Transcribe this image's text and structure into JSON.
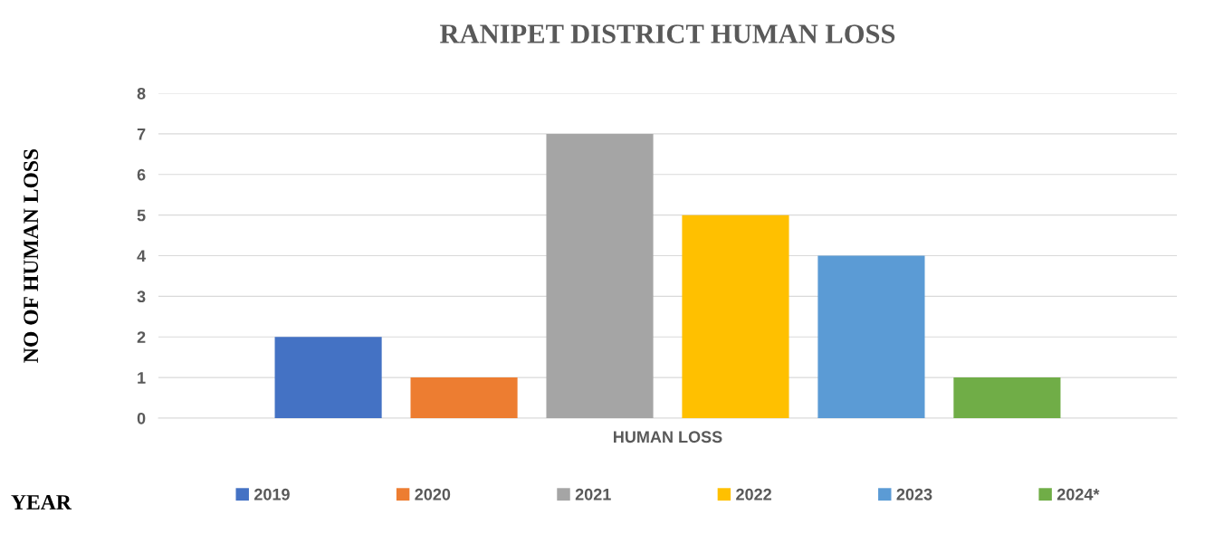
{
  "chart_data": {
    "type": "bar",
    "title": "RANIPET DISTRICT HUMAN LOSS",
    "ylabel": "NO OF HUMAN LOSS",
    "legend_title": "YEAR",
    "categories": [
      "HUMAN LOSS"
    ],
    "series": [
      {
        "name": "2019",
        "color": "#4472c4",
        "values": [
          2
        ]
      },
      {
        "name": "2020",
        "color": "#ed7d31",
        "values": [
          1
        ]
      },
      {
        "name": "2021",
        "color": "#a5a5a5",
        "values": [
          7
        ]
      },
      {
        "name": "2022",
        "color": "#ffc000",
        "values": [
          5
        ]
      },
      {
        "name": "2023",
        "color": "#5b9bd5",
        "values": [
          4
        ]
      },
      {
        "name": "2024*",
        "color": "#70ad47",
        "values": [
          1
        ]
      }
    ],
    "ylim": [
      0,
      8
    ],
    "yticks": [
      0,
      1,
      2,
      3,
      4,
      5,
      6,
      7,
      8
    ],
    "grid": "y",
    "legend": "bottom"
  }
}
